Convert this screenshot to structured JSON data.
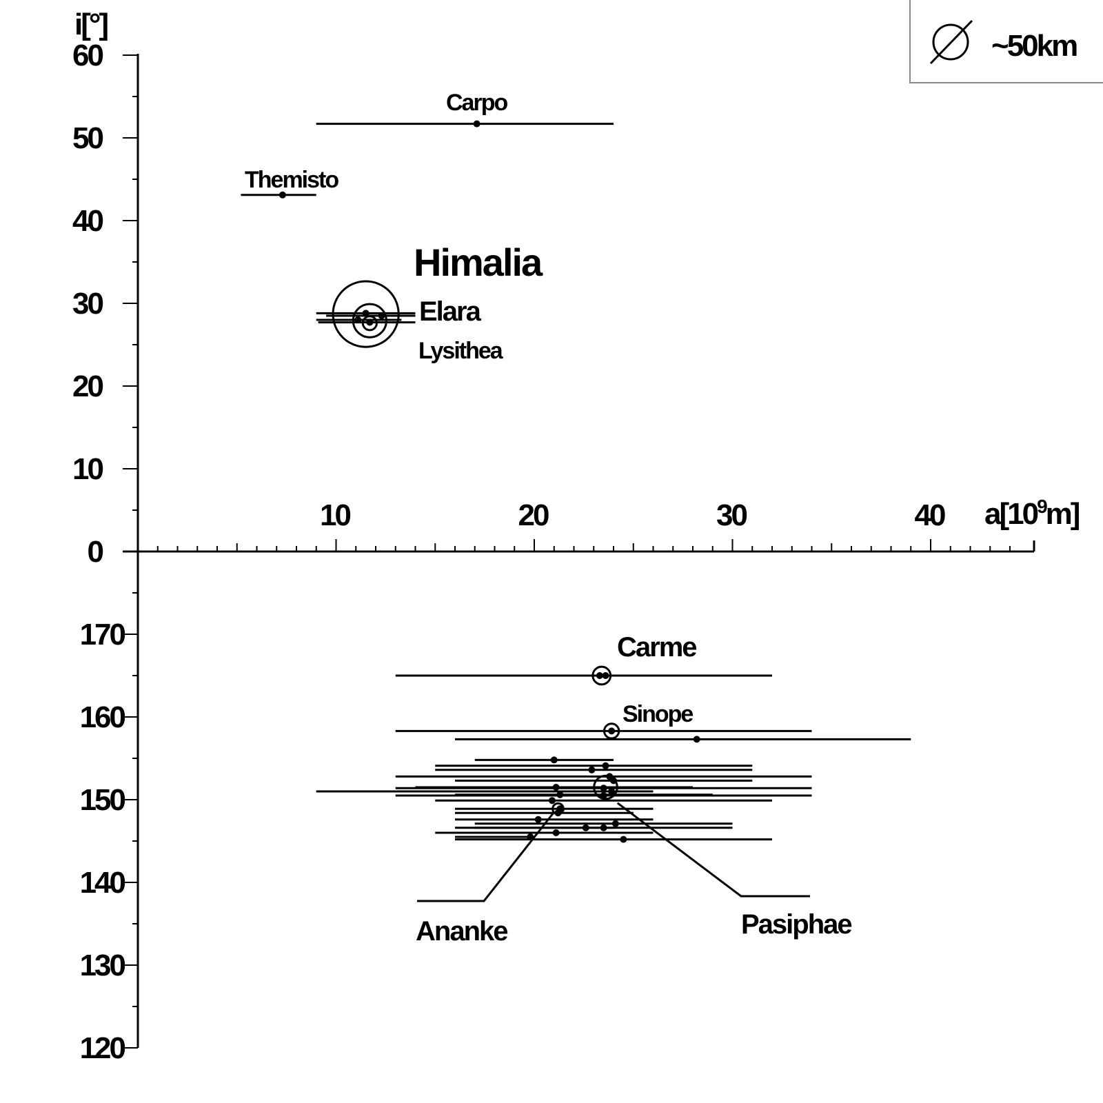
{
  "chart_data": {
    "type": "scatter",
    "x_axis": {
      "label_prefix": "a[10",
      "label_exponent": "9",
      "label_suffix": "m]",
      "range": [
        0,
        44
      ],
      "ticks": [
        "10",
        "20",
        "30",
        "40"
      ]
    },
    "y_axis": {
      "label": "i[°]",
      "upper_ticks": [
        "0",
        "10",
        "20",
        "30",
        "40",
        "50",
        "60"
      ],
      "lower_ticks": [
        "120",
        "130",
        "140",
        "150",
        "160",
        "170"
      ],
      "upper_range": [
        0,
        60
      ],
      "lower_range": [
        120,
        180
      ]
    },
    "legend": {
      "symbol": "empty-set-circle",
      "text": "~50km",
      "position": "top-right"
    },
    "labels": {
      "carpo": "Carpo",
      "themisto": "Themisto",
      "himalia": "Himalia",
      "elara": "Elara",
      "lysithea": "Lysithea",
      "carme": "Carme",
      "sinope": "Sinope",
      "ananke": "Ananke",
      "pasiphae": "Pasiphae"
    },
    "prograde": [
      {
        "a": 17.1,
        "i": 51.7,
        "amin": 9.0,
        "amax": 24.0
      },
      {
        "a": 7.3,
        "i": 43.1,
        "amin": 5.2,
        "amax": 9.0
      },
      {
        "a": 11.5,
        "i": 28.8,
        "amin": 9.0,
        "amax": 14.0
      },
      {
        "a": 11.7,
        "i": 27.7,
        "amin": 9.1,
        "amax": 14.0
      },
      {
        "a": 11.1,
        "i": 28.0,
        "amin": 9.0,
        "amax": 13.3
      },
      {
        "a": 12.3,
        "i": 28.5,
        "amin": 9.5,
        "amax": 14.0
      }
    ],
    "retrograde": [
      {
        "a": 23.3,
        "i": 165.0,
        "amin": 13.0,
        "amax": 32.0
      },
      {
        "a": 23.6,
        "i": 165.0,
        "amin": 16.0,
        "amax": 29.0
      },
      {
        "a": 23.9,
        "i": 158.3,
        "amin": 13.0,
        "amax": 34.0
      },
      {
        "a": 28.2,
        "i": 157.3,
        "amin": 16.0,
        "amax": 39.0
      },
      {
        "a": 21.0,
        "i": 154.8,
        "amin": 17.0,
        "amax": 24.0
      },
      {
        "a": 23.6,
        "i": 154.1,
        "amin": 15.0,
        "amax": 31.0
      },
      {
        "a": 22.9,
        "i": 153.6,
        "amin": 15.0,
        "amax": 31.0
      },
      {
        "a": 23.8,
        "i": 152.8,
        "amin": 13.0,
        "amax": 34.0
      },
      {
        "a": 24.0,
        "i": 152.3,
        "amin": 16.0,
        "amax": 31.0
      },
      {
        "a": 21.1,
        "i": 151.5,
        "amin": 14.0,
        "amax": 28.0
      },
      {
        "a": 23.5,
        "i": 151.4,
        "amin": 13.0,
        "amax": 34.0
      },
      {
        "a": 23.9,
        "i": 151.0,
        "amin": 9.0,
        "amax": 26.0
      },
      {
        "a": 21.3,
        "i": 150.6,
        "amin": 16.0,
        "amax": 29.0
      },
      {
        "a": 23.5,
        "i": 150.5,
        "amin": 13.0,
        "amax": 34.0
      },
      {
        "a": 20.9,
        "i": 149.9,
        "amin": 15.0,
        "amax": 32.0
      },
      {
        "a": 21.3,
        "i": 148.9,
        "amin": 16.0,
        "amax": 26.0
      },
      {
        "a": 21.2,
        "i": 148.4,
        "amin": 16.0,
        "amax": 25.0
      },
      {
        "a": 20.2,
        "i": 147.6,
        "amin": 16.0,
        "amax": 26.0
      },
      {
        "a": 24.1,
        "i": 147.1,
        "amin": 17.0,
        "amax": 30.0
      },
      {
        "a": 22.6,
        "i": 146.6,
        "amin": 17.0,
        "amax": 30.0
      },
      {
        "a": 23.5,
        "i": 146.6,
        "amin": 16.0,
        "amax": 24.0
      },
      {
        "a": 21.1,
        "i": 146.0,
        "amin": 15.0,
        "amax": 26.0
      },
      {
        "a": 19.8,
        "i": 145.5,
        "amin": 16.0,
        "amax": 20.0
      },
      {
        "a": 24.5,
        "i": 145.2,
        "amin": 16.0,
        "amax": 32.0
      }
    ],
    "size_circles": [
      {
        "a": 11.5,
        "i": 28.7,
        "diameter_km": 170
      },
      {
        "a": 11.7,
        "i": 27.9,
        "diameter_km": 86
      },
      {
        "a": 11.7,
        "i": 27.6,
        "diameter_km": 36
      },
      {
        "a": 11.1,
        "i": 28.0,
        "diameter_km": 12
      },
      {
        "a": 23.4,
        "i": 165.0,
        "diameter_km": 46
      },
      {
        "a": 23.9,
        "i": 158.3,
        "diameter_km": 38
      },
      {
        "a": 23.6,
        "i": 151.5,
        "diameter_km": 60
      },
      {
        "a": 21.2,
        "i": 148.9,
        "diameter_km": 28
      }
    ]
  }
}
